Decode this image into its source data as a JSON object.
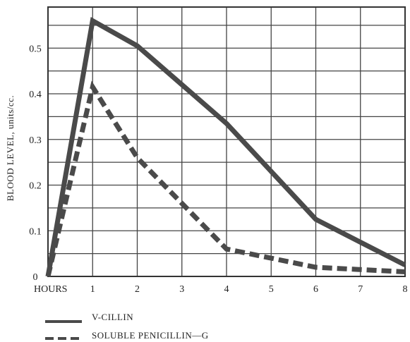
{
  "chart_data": {
    "type": "line",
    "title": "",
    "xlabel": "HOURS",
    "ylabel": "BLOOD LEVEL, units/cc.",
    "x_ticks": [
      "1",
      "2",
      "3",
      "4",
      "5",
      "6",
      "7",
      "8"
    ],
    "y_ticks": [
      "0",
      "0.1",
      "0.2",
      "0.3",
      "0.4",
      "0.5"
    ],
    "xlim": [
      0,
      8
    ],
    "ylim": [
      0,
      0.59
    ],
    "grid": true,
    "legend_position": "bottom-left",
    "series": [
      {
        "name": "V-CILLIN",
        "style": "solid",
        "color": "#4a4a4a",
        "x": [
          0,
          1,
          2,
          4,
          6,
          8
        ],
        "y": [
          0,
          0.56,
          0.505,
          0.335,
          0.125,
          0.025
        ]
      },
      {
        "name": "SOLUBLE PENICILLIN—G",
        "style": "dashed",
        "color": "#4a4a4a",
        "x": [
          0,
          1,
          2,
          4,
          6,
          8
        ],
        "y": [
          0,
          0.415,
          0.26,
          0.06,
          0.02,
          0.01
        ]
      }
    ]
  }
}
